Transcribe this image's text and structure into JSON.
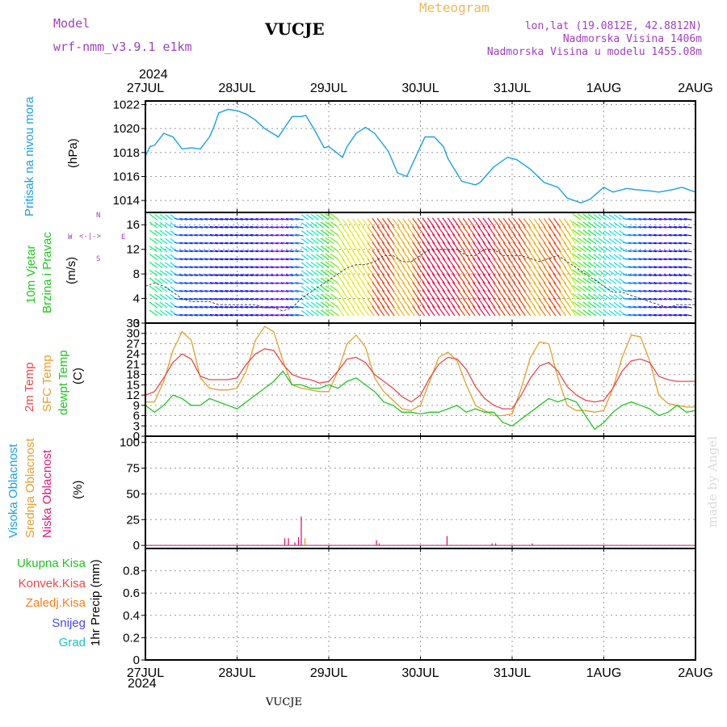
{
  "header": {
    "model_label": "Model",
    "model_name": "wrf-nmm_v3.9.1  e1km",
    "station_title": "VUCJE",
    "meteogram_label": "Meteogram",
    "lonlat": "lon,lat (19.0812E, 42.8812N)",
    "altitude": "Nadmorska Visina 1406m",
    "model_altitude": "Nadmorska Visina u modelu 1455.08m",
    "watermark": "made by Angel",
    "footer_title": "VUCJE",
    "year": "2024"
  },
  "colors": {
    "pressure": "#1aa0e0",
    "temp2m": "#e84848",
    "sfc_temp": "#e0a030",
    "dewpt": "#22c422",
    "high_cloud": "#1aa0e0",
    "mid_cloud": "#e0a030",
    "low_cloud": "#d81878",
    "model_label": "#a040c0",
    "meteogram_label": "#e8b860"
  },
  "time_axis": {
    "labels": [
      "27JUL",
      "28JUL",
      "29JUL",
      "30JUL",
      "31JUL",
      "1AUG",
      "2AUG"
    ]
  },
  "panels": {
    "pressure": {
      "labels": [
        "Pritisak na nivou mora"
      ],
      "unit": "(hPa)"
    },
    "wind": {
      "labels": [
        "10m Vjetar",
        "Brzina i Pravac"
      ],
      "unit": "(m/s)",
      "compass": [
        "N",
        "W",
        "E",
        "S"
      ]
    },
    "temperature": {
      "labels": [
        "2m Temp",
        "SFC Temp",
        "dewpt Temp"
      ],
      "unit": "(C)"
    },
    "clouds": {
      "labels": [
        "Visoka Oblacnost",
        "Srednja Oblacnost",
        "Niska Oblacnost"
      ],
      "unit": "(%)"
    },
    "precip": {
      "labels": [
        "Ukupna Kisa",
        "Konvek.Kisa",
        "Zaledj.Kisa",
        "Snijeg",
        "Grad"
      ],
      "unit": "1hr Precip (mm)"
    }
  },
  "chart_data": [
    {
      "type": "line",
      "title": "",
      "ylabel": "Pritisak na nivou mora (hPa)",
      "ylim": [
        1013,
        1022.3
      ],
      "yticks": [
        1014,
        1016,
        1018,
        1020,
        1022
      ],
      "x_days": [
        0,
        0.05,
        0.1,
        0.2,
        0.3,
        0.4,
        0.5,
        0.6,
        0.7,
        0.75,
        0.8,
        0.9,
        1.0,
        1.1,
        1.2,
        1.3,
        1.45,
        1.6,
        1.7,
        1.75,
        1.85,
        1.95,
        2.0,
        2.1,
        2.15,
        2.2,
        2.3,
        2.4,
        2.5,
        2.65,
        2.75,
        2.85,
        3.0,
        3.05,
        3.15,
        3.25,
        3.3,
        3.45,
        3.6,
        3.65,
        3.8,
        3.95,
        4.05,
        4.2,
        4.35,
        4.5,
        4.6,
        4.75,
        4.85,
        5.0,
        5.1,
        5.25,
        5.35,
        5.5,
        5.6,
        5.75,
        5.85,
        6.0
      ],
      "series": [
        {
          "name": "",
          "values": [
            1017.7,
            1018.5,
            1018.6,
            1019.6,
            1019.3,
            1018.3,
            1018.4,
            1018.3,
            1019.3,
            1020.2,
            1021.3,
            1021.6,
            1021.5,
            1021.2,
            1020.7,
            1020.0,
            1019.3,
            1021.0,
            1021.0,
            1021.1,
            1019.8,
            1018.4,
            1018.5,
            1017.9,
            1017.6,
            1018.5,
            1019.6,
            1020.1,
            1019.6,
            1018.1,
            1016.3,
            1016.0,
            1018.5,
            1019.3,
            1019.3,
            1018.5,
            1017.5,
            1015.6,
            1015.3,
            1015.5,
            1016.8,
            1017.6,
            1017.4,
            1016.6,
            1015.5,
            1015.1,
            1014.2,
            1013.8,
            1014.1,
            1015.1,
            1014.7,
            1015.0,
            1014.9,
            1014.8,
            1014.7,
            1014.9,
            1015.1,
            1014.7
          ]
        }
      ]
    },
    {
      "type": "line",
      "title": "",
      "ylabel": "10m Vjetar Brzina i Pravac (m/s)",
      "ylim": [
        0,
        18
      ],
      "yticks": [
        0,
        4,
        8,
        12,
        16
      ],
      "x_days": [
        0,
        0.1,
        0.2,
        0.3,
        0.4,
        0.5,
        0.6,
        0.7,
        0.8,
        0.9,
        1.0,
        1.1,
        1.2,
        1.3,
        1.4,
        1.5,
        1.6,
        1.7,
        1.8,
        1.9,
        2.0,
        2.1,
        2.2,
        2.3,
        2.4,
        2.5,
        2.6,
        2.7,
        2.8,
        2.9,
        3.0,
        3.1,
        3.2,
        3.3,
        3.4,
        3.5,
        3.6,
        3.7,
        3.8,
        3.9,
        4.0,
        4.1,
        4.2,
        4.3,
        4.4,
        4.5,
        4.6,
        4.7,
        4.8,
        4.9,
        5.0,
        5.1,
        5.2,
        5.3,
        5.4,
        5.5,
        5.6,
        5.7,
        5.8,
        5.9,
        6.0
      ],
      "series": [
        {
          "name": "",
          "values": [
            6,
            6.5,
            6,
            5,
            4,
            3.5,
            3.5,
            3.5,
            3,
            3,
            3,
            3,
            3,
            2.5,
            2.5,
            2,
            2.5,
            4,
            5,
            6,
            7,
            8,
            9,
            9.5,
            9.5,
            10,
            11,
            11,
            10,
            10,
            11,
            12,
            12,
            12,
            12,
            11,
            11,
            12,
            12,
            11,
            11,
            11,
            10.5,
            10,
            10.5,
            11,
            10,
            9,
            8,
            7,
            6,
            5,
            5,
            4.5,
            4,
            3.5,
            3,
            2.5,
            3,
            3,
            3
          ]
        }
      ]
    },
    {
      "type": "line",
      "title": "",
      "ylabel": "Temp (C)",
      "ylim": [
        0,
        33
      ],
      "yticks": [
        0,
        3,
        6,
        9,
        12,
        15,
        18,
        21,
        24,
        27,
        30,
        33
      ],
      "x_days": [
        0,
        0.1,
        0.2,
        0.3,
        0.4,
        0.5,
        0.6,
        0.7,
        0.8,
        0.9,
        1.0,
        1.1,
        1.2,
        1.3,
        1.4,
        1.5,
        1.6,
        1.7,
        1.8,
        1.9,
        2.0,
        2.1,
        2.2,
        2.3,
        2.4,
        2.5,
        2.6,
        2.7,
        2.8,
        2.9,
        3.0,
        3.1,
        3.2,
        3.3,
        3.4,
        3.5,
        3.6,
        3.7,
        3.8,
        3.9,
        4.0,
        4.1,
        4.2,
        4.3,
        4.4,
        4.5,
        4.6,
        4.7,
        4.8,
        4.9,
        5.0,
        5.1,
        5.2,
        5.3,
        5.4,
        5.5,
        5.6,
        5.7,
        5.8,
        5.9,
        6.0
      ],
      "series": [
        {
          "name": "2m Temp",
          "values": [
            12,
            13,
            17,
            21.5,
            24,
            22.5,
            17.5,
            16.5,
            16.5,
            16.5,
            17,
            21,
            24,
            25.5,
            25,
            21,
            18,
            17,
            16.5,
            15.5,
            16,
            19,
            22.5,
            23,
            21.5,
            18,
            16,
            14,
            11.5,
            10,
            12,
            17,
            21,
            23,
            22.5,
            19.5,
            14.5,
            11,
            9,
            8,
            8,
            12,
            17,
            20.5,
            21.5,
            19,
            14.5,
            12,
            10.5,
            10,
            10.5,
            14,
            19,
            22,
            22.5,
            21.5,
            17.5,
            16.5,
            16,
            16,
            16
          ]
        },
        {
          "name": "SFC Temp",
          "values": [
            10,
            10,
            16,
            25,
            30.5,
            28,
            17,
            14,
            13.5,
            13.5,
            14,
            19,
            28,
            32,
            30.5,
            22,
            15,
            14,
            13.5,
            13,
            13,
            19,
            27,
            29.5,
            26,
            17,
            13,
            10.5,
            8,
            7.5,
            9,
            16,
            23,
            24.5,
            22,
            15,
            9,
            7.5,
            6,
            6,
            6.5,
            14,
            23,
            27.5,
            27,
            17,
            9,
            7.5,
            7.5,
            7,
            7.5,
            14,
            23,
            29.5,
            29,
            22,
            12,
            9.5,
            9,
            8.5,
            8.5
          ]
        },
        {
          "name": "dewpt Temp",
          "values": [
            9,
            7,
            9,
            12,
            11,
            9,
            9,
            11,
            10,
            9,
            8,
            10,
            12,
            14,
            16,
            19,
            15,
            15,
            14,
            14,
            15,
            14,
            16,
            17,
            15,
            13,
            10,
            9,
            7,
            7,
            6.5,
            7,
            7,
            8,
            9,
            7,
            8,
            7,
            7,
            4,
            3,
            5,
            7,
            9,
            11,
            10,
            11,
            10,
            6,
            2,
            4,
            7,
            9,
            10,
            9,
            8,
            6,
            7,
            9,
            7,
            7.5
          ]
        }
      ]
    },
    {
      "type": "bar",
      "title": "",
      "ylabel": "Oblacnost (%)",
      "ylim": [
        -3,
        106
      ],
      "yticks": [
        0,
        25,
        50,
        75,
        100
      ],
      "series": [
        {
          "name": "Visoka Oblacnost",
          "x_days": [],
          "values": []
        },
        {
          "name": "Srednja Oblacnost",
          "x_days": [
            1.74
          ],
          "values": [
            7
          ]
        },
        {
          "name": "Niska Oblacnost",
          "x_days": [
            1.52,
            1.56,
            1.63,
            1.67,
            1.7,
            2.52,
            2.55,
            3.29,
            3.78,
            3.82,
            4.22
          ],
          "values": [
            7,
            7,
            3,
            8,
            28,
            5,
            2,
            9,
            2,
            2,
            2
          ]
        }
      ]
    },
    {
      "type": "bar",
      "title": "",
      "ylabel": "1hr Precip (mm)",
      "ylim": [
        0,
        1.0
      ],
      "yticks": [
        0,
        0.2,
        0.4,
        0.6,
        0.8
      ],
      "series": []
    }
  ]
}
